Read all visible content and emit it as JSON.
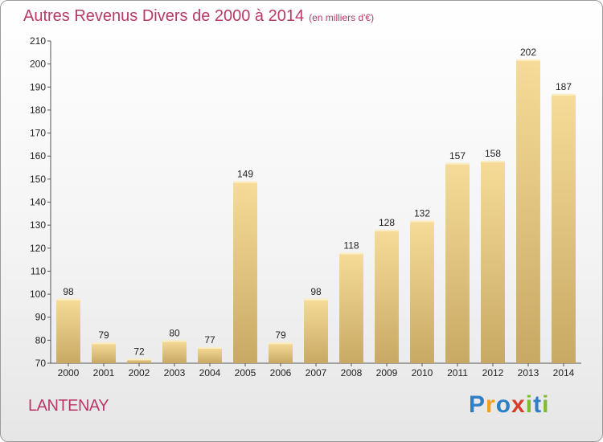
{
  "title": "Autres Revenus Divers de 2000 à 2014",
  "subtitle": "(en milliers d'€)",
  "commune": "LANTENAY",
  "logo": {
    "letters": [
      "P",
      "r",
      "o",
      "x",
      "i",
      "t",
      "i"
    ],
    "colors": [
      "#2e7fc6",
      "#f0a11c",
      "#2e7fc6",
      "#d53f2b",
      "#7dbb2c",
      "#2e7fc6",
      "#7dbb2c"
    ]
  },
  "colors": {
    "title": "#b8396a",
    "bar_light": "#f6dc98",
    "bar_dark": "#c8a964"
  },
  "chart_data": {
    "type": "bar",
    "categories": [
      "2000",
      "2001",
      "2002",
      "2003",
      "2004",
      "2005",
      "2006",
      "2007",
      "2008",
      "2009",
      "2010",
      "2011",
      "2012",
      "2013",
      "2014"
    ],
    "values": [
      98,
      79,
      72,
      80,
      77,
      149,
      79,
      98,
      118,
      128,
      132,
      157,
      158,
      202,
      187
    ],
    "ylim": [
      70,
      210
    ],
    "yticks": [
      70,
      80,
      90,
      100,
      110,
      120,
      130,
      140,
      150,
      160,
      170,
      180,
      190,
      200,
      210
    ],
    "grid": false,
    "data_labels": true
  }
}
